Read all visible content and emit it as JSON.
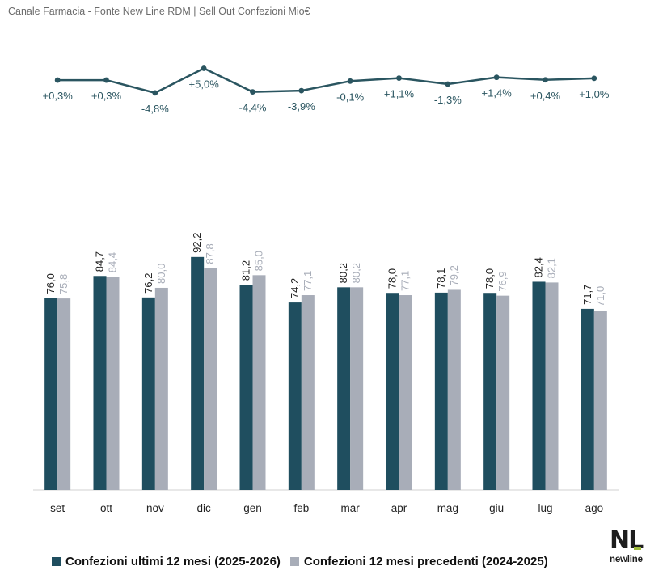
{
  "title": "Canale Farmacia - Fonte New Line RDM | Sell Out Confezioni Mio€",
  "colors": {
    "current": "#1f4e5f",
    "previous": "#a8adb8",
    "line": "#2a5560",
    "text": "#222222",
    "axis": "#d0d0d0"
  },
  "chart_data": {
    "type": "bar",
    "categories": [
      "set",
      "ott",
      "nov",
      "dic",
      "gen",
      "feb",
      "mar",
      "apr",
      "mag",
      "giu",
      "lug",
      "ago"
    ],
    "series": [
      {
        "name": "Confezioni ultimi 12 mesi (2025-2026)",
        "values": [
          76.0,
          84.7,
          76.2,
          92.2,
          81.2,
          74.2,
          80.2,
          78.0,
          78.1,
          78.0,
          82.4,
          71.7
        ],
        "labels": [
          "76,0",
          "84,7",
          "76,2",
          "92,2",
          "81,2",
          "74,2",
          "80,2",
          "78,0",
          "78,1",
          "78,0",
          "82,4",
          "71,7"
        ]
      },
      {
        "name": "Confezioni 12 mesi precedenti (2024-2025)",
        "values": [
          75.8,
          84.4,
          80.0,
          87.8,
          85.0,
          77.1,
          80.2,
          77.1,
          79.2,
          76.9,
          82.1,
          71.0
        ],
        "labels": [
          "75,8",
          "84,4",
          "80,0",
          "87,8",
          "85,0",
          "77,1",
          "80,2",
          "77,1",
          "79,2",
          "76,9",
          "82,1",
          "71,0"
        ]
      }
    ],
    "variation": {
      "type": "line",
      "values": [
        0.3,
        0.3,
        -4.8,
        5.0,
        -4.4,
        -3.9,
        -0.1,
        1.1,
        -1.3,
        1.4,
        0.4,
        1.0
      ],
      "labels": [
        "+0,3%",
        "+0,3%",
        "-4,8%",
        "+5,0%",
        "-4,4%",
        "-3,9%",
        "-0,1%",
        "+1,1%",
        "-1,3%",
        "+1,4%",
        "+0,4%",
        "+1,0%"
      ]
    },
    "ylim": [
      0,
      100
    ],
    "legend": "bottom"
  },
  "logo": {
    "mark": "NL",
    "word": "newline"
  }
}
